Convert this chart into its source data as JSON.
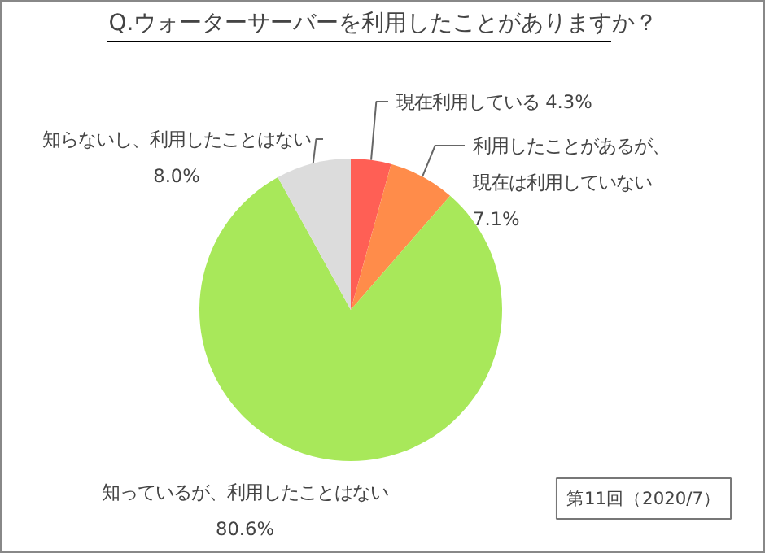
{
  "chart_data": {
    "type": "pie",
    "title": "Q.ウォーターサーバーを利用したことがありますか？",
    "categories": [
      "現在利用している",
      "利用したことがあるが、現在は利用していない",
      "知っているが、利用したことはない",
      "知らないし、利用したことはない"
    ],
    "values": [
      4.3,
      7.1,
      80.6,
      8.0
    ],
    "colors": [
      "#ff5f55",
      "#ff8c4a",
      "#a8e85a",
      "#dcdcdc"
    ],
    "value_labels": [
      "4.3%",
      "7.1%",
      "80.6%",
      "8.0%"
    ],
    "annotations": [
      "第11回（2020/7）"
    ]
  }
}
